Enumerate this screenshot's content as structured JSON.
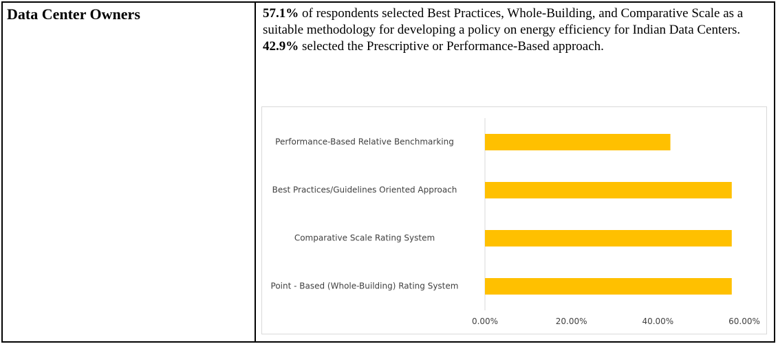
{
  "table": {
    "rows": [
      [
        "Data Center Owners"
      ]
    ]
  },
  "paragraph": [
    "57.1%",
    " of respondents selected Best Practices, Whole-Building, and Comparative Scale as a suitable methodology for developing a policy on energy efficiency for Indian Data Centers. ",
    "42.9%",
    " selected the Prescriptive or Performance-Based approach."
  ],
  "chart_data": {
    "type": "bar",
    "orientation": "horizontal",
    "categories": [
      "Performance-Based Relative Benchmarking",
      "Best Practices/Guidelines Oriented Approach",
      "Comparative Scale Rating System",
      "Point - Based (Whole-Building) Rating System"
    ],
    "values": [
      42.9,
      57.1,
      57.1,
      57.1
    ],
    "color": "#ffc000",
    "xlim": [
      0,
      60
    ],
    "xticks": [
      {
        "value": 0,
        "label": "0.00%"
      },
      {
        "value": 20,
        "label": "20.00%"
      },
      {
        "value": 40,
        "label": "40.00%"
      },
      {
        "value": 60,
        "label": "60.00%"
      }
    ]
  }
}
